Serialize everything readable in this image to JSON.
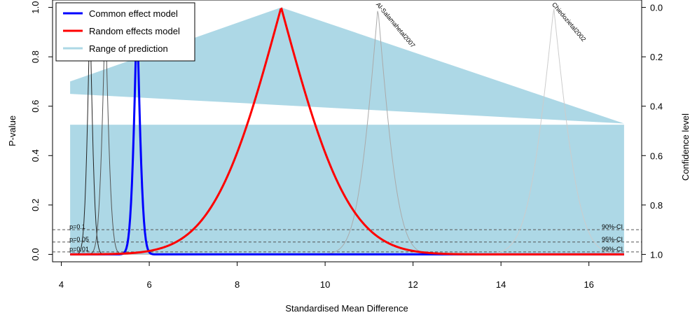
{
  "chart_data": {
    "type": "line",
    "title": "",
    "xlabel": "Standardised Mean Difference",
    "ylabel": "P-value",
    "ylabel_right": "Confidence level",
    "xlim": [
      3.8,
      17.2
    ],
    "ylim": [
      -0.03,
      1.03
    ],
    "xticks": [
      "4",
      "6",
      "8",
      "10",
      "12",
      "14",
      "16"
    ],
    "yticks_left": [
      "0.0",
      "0.2",
      "0.4",
      "0.6",
      "0.8",
      "1.0"
    ],
    "yticks_right": [
      "0.0",
      "0.2",
      "0.4",
      "0.6",
      "0.8",
      "1.0"
    ],
    "legend": {
      "position": "top-left",
      "entries": [
        {
          "label": "Common effect model",
          "color": "#0000ff"
        },
        {
          "label": "Random effects model",
          "color": "#ff0000"
        },
        {
          "label": "Range of prediction",
          "color": "#add8e6"
        }
      ]
    },
    "reference_lines": [
      {
        "p": 0.1,
        "label_left": "p=0.1",
        "label_right": "90%-CI"
      },
      {
        "p": 0.05,
        "label_left": "p=0.05",
        "label_right": "95%-CI"
      },
      {
        "p": 0.01,
        "label_left": "p=0.01",
        "label_right": "99%-CI"
      }
    ],
    "series": [
      {
        "name": "Common effect model",
        "kind": "pvalue-function",
        "center": 5.72,
        "se": 0.107,
        "color": "#0000ff",
        "width": 3
      },
      {
        "name": "Random effects model",
        "kind": "pvalue-function",
        "center": 9.0,
        "se": 1.22,
        "color": "#ff0000",
        "width": 3
      }
    ],
    "studies": [
      {
        "label": "",
        "center": 4.65,
        "se": 0.09,
        "color": "#222222"
      },
      {
        "label": "",
        "center": 5.0,
        "se": 0.11,
        "color": "#555555"
      },
      {
        "label": "Al-Salamahetal2007",
        "center": 11.2,
        "se": 0.38,
        "color": "#aaaaaa"
      },
      {
        "label": "Chiedozietal2002",
        "center": 15.2,
        "se": 0.47,
        "color": "#cccccc"
      }
    ],
    "prediction_upper": {
      "x_left": 4.2,
      "x_right": 16.8,
      "x_apex": 9.0,
      "y_apex": 1.0,
      "y_left": 0.7,
      "y_right": 0.53,
      "y_slant_left": 0.65
    },
    "prediction_lower": {
      "x_left": 4.2,
      "x_right": 16.8,
      "y_top": 0.525,
      "y_bottom": 0.0
    },
    "colors": {
      "band": "#add8e6",
      "refline": "#555555"
    }
  }
}
